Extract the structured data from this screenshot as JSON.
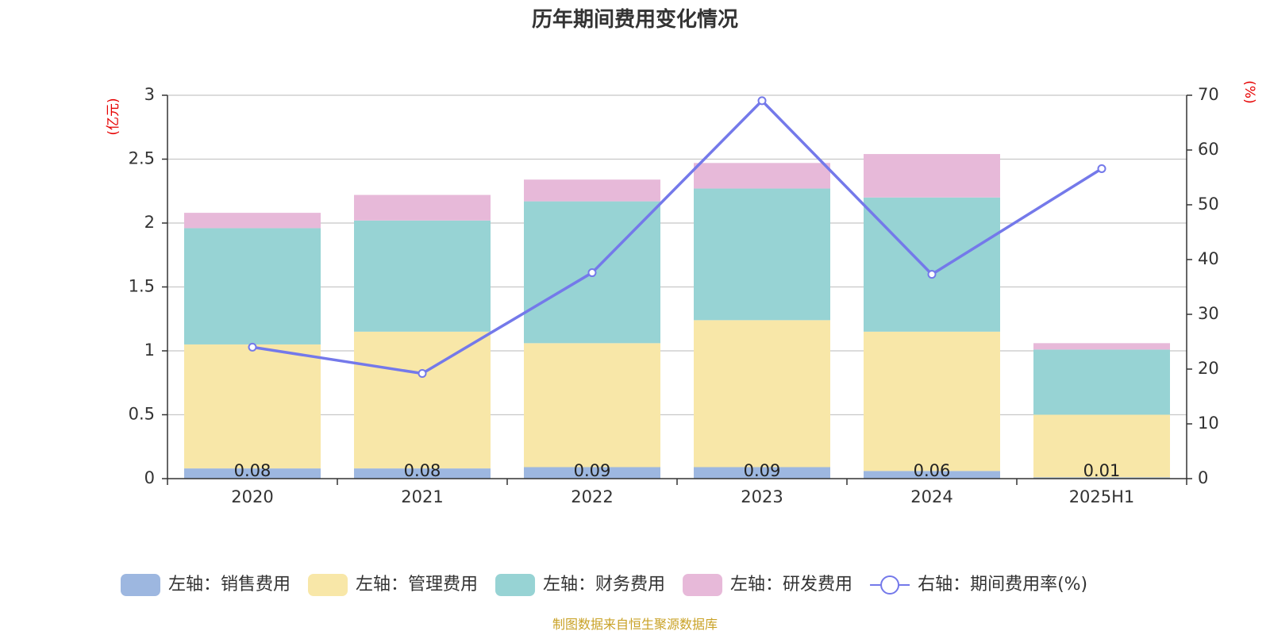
{
  "chart_data": {
    "type": "bar",
    "title": "历年期间费用变化情况",
    "categories": [
      "2020",
      "2021",
      "2022",
      "2023",
      "2024",
      "2025H1"
    ],
    "y_left": {
      "unit": "(亿元)",
      "ylim": [
        0,
        3
      ],
      "ticks": [
        "0",
        "0.5",
        "1",
        "1.5",
        "2",
        "2.5",
        "3"
      ]
    },
    "y_right": {
      "unit": "(%)",
      "ylim": [
        0,
        70
      ],
      "ticks": [
        "0",
        "10",
        "20",
        "30",
        "40",
        "50",
        "60",
        "70"
      ]
    },
    "grid": true,
    "legend_position": "bottom",
    "series": [
      {
        "name": "左轴：销售费用",
        "type": "stacked-bar",
        "axis": "left",
        "color": "#9db7e0",
        "values": [
          0.08,
          0.08,
          0.09,
          0.09,
          0.06,
          0.01
        ],
        "data_labels": [
          "0.08",
          "0.08",
          "0.09",
          "0.09",
          "0.06",
          "0.01"
        ]
      },
      {
        "name": "左轴：管理费用",
        "type": "stacked-bar",
        "axis": "left",
        "color": "#f8e7a8",
        "values": [
          0.97,
          1.07,
          0.97,
          1.15,
          1.09,
          0.49
        ]
      },
      {
        "name": "左轴：财务费用",
        "type": "stacked-bar",
        "axis": "left",
        "color": "#97d3d4",
        "values": [
          0.91,
          0.87,
          1.11,
          1.03,
          1.05,
          0.51
        ]
      },
      {
        "name": "左轴：研发费用",
        "type": "stacked-bar",
        "axis": "left",
        "color": "#e7b9d9",
        "values": [
          0.12,
          0.2,
          0.17,
          0.2,
          0.34,
          0.05
        ]
      },
      {
        "name": "右轴：期间费用率(%)",
        "type": "line",
        "axis": "right",
        "color": "#7479ea",
        "values": [
          24.0,
          19.2,
          37.6,
          69.0,
          37.3,
          56.6
        ]
      }
    ]
  },
  "footer": {
    "source": "制图数据来自恒生聚源数据库"
  }
}
